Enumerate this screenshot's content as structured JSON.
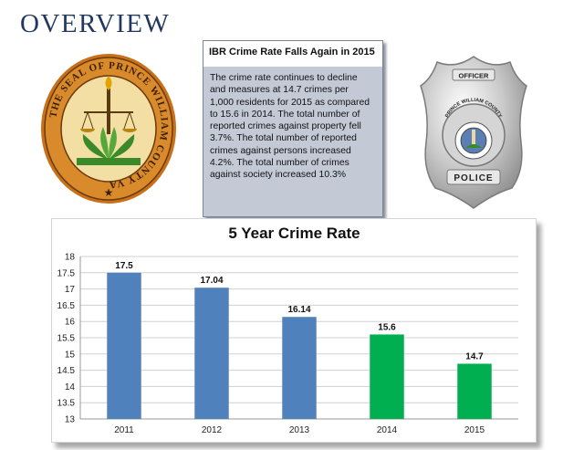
{
  "page": {
    "heading": "OVERVIEW"
  },
  "seal": {
    "text": "THE SEAL OF PRINCE WILLIAM COUNTY VA"
  },
  "badge": {
    "top": "OFFICER",
    "county": "PRINCE WILLIAM COUNTY",
    "bottom": "POLICE"
  },
  "info_box": {
    "title": "IBR Crime Rate Falls Again in 2015",
    "lines": [
      "The crime rate continues to decline",
      "and measures at 14.7 crimes per",
      "1,000 residents for 2015 as compared",
      "to 15.6 in 2014. The total number of",
      "reported crimes against property fell",
      "3.7%. The total number of reported",
      "crimes against persons increased",
      "4.2%. The total number of crimes",
      "against society increased 10.3%"
    ]
  },
  "chart_data": {
    "type": "bar",
    "title": "5 Year Crime Rate",
    "xlabel": "",
    "ylabel": "",
    "categories": [
      "2011",
      "2012",
      "2013",
      "2014",
      "2015"
    ],
    "values": [
      17.5,
      17.04,
      16.14,
      15.6,
      14.7
    ],
    "data_labels": [
      "17.5",
      "17.04",
      "16.14",
      "15.6",
      "14.7"
    ],
    "bar_colors": [
      "#4f81bd",
      "#4f81bd",
      "#4f81bd",
      "#00b050",
      "#00b050"
    ],
    "ylim": [
      13,
      18
    ],
    "yticks": [
      "13",
      "13.5",
      "14",
      "14.5",
      "15",
      "15.5",
      "16",
      "16.5",
      "17",
      "17.5",
      "18"
    ],
    "grid": true,
    "legend": "none"
  },
  "colors": {
    "heading": "#22385e",
    "gridline": "#d0d0d0"
  }
}
